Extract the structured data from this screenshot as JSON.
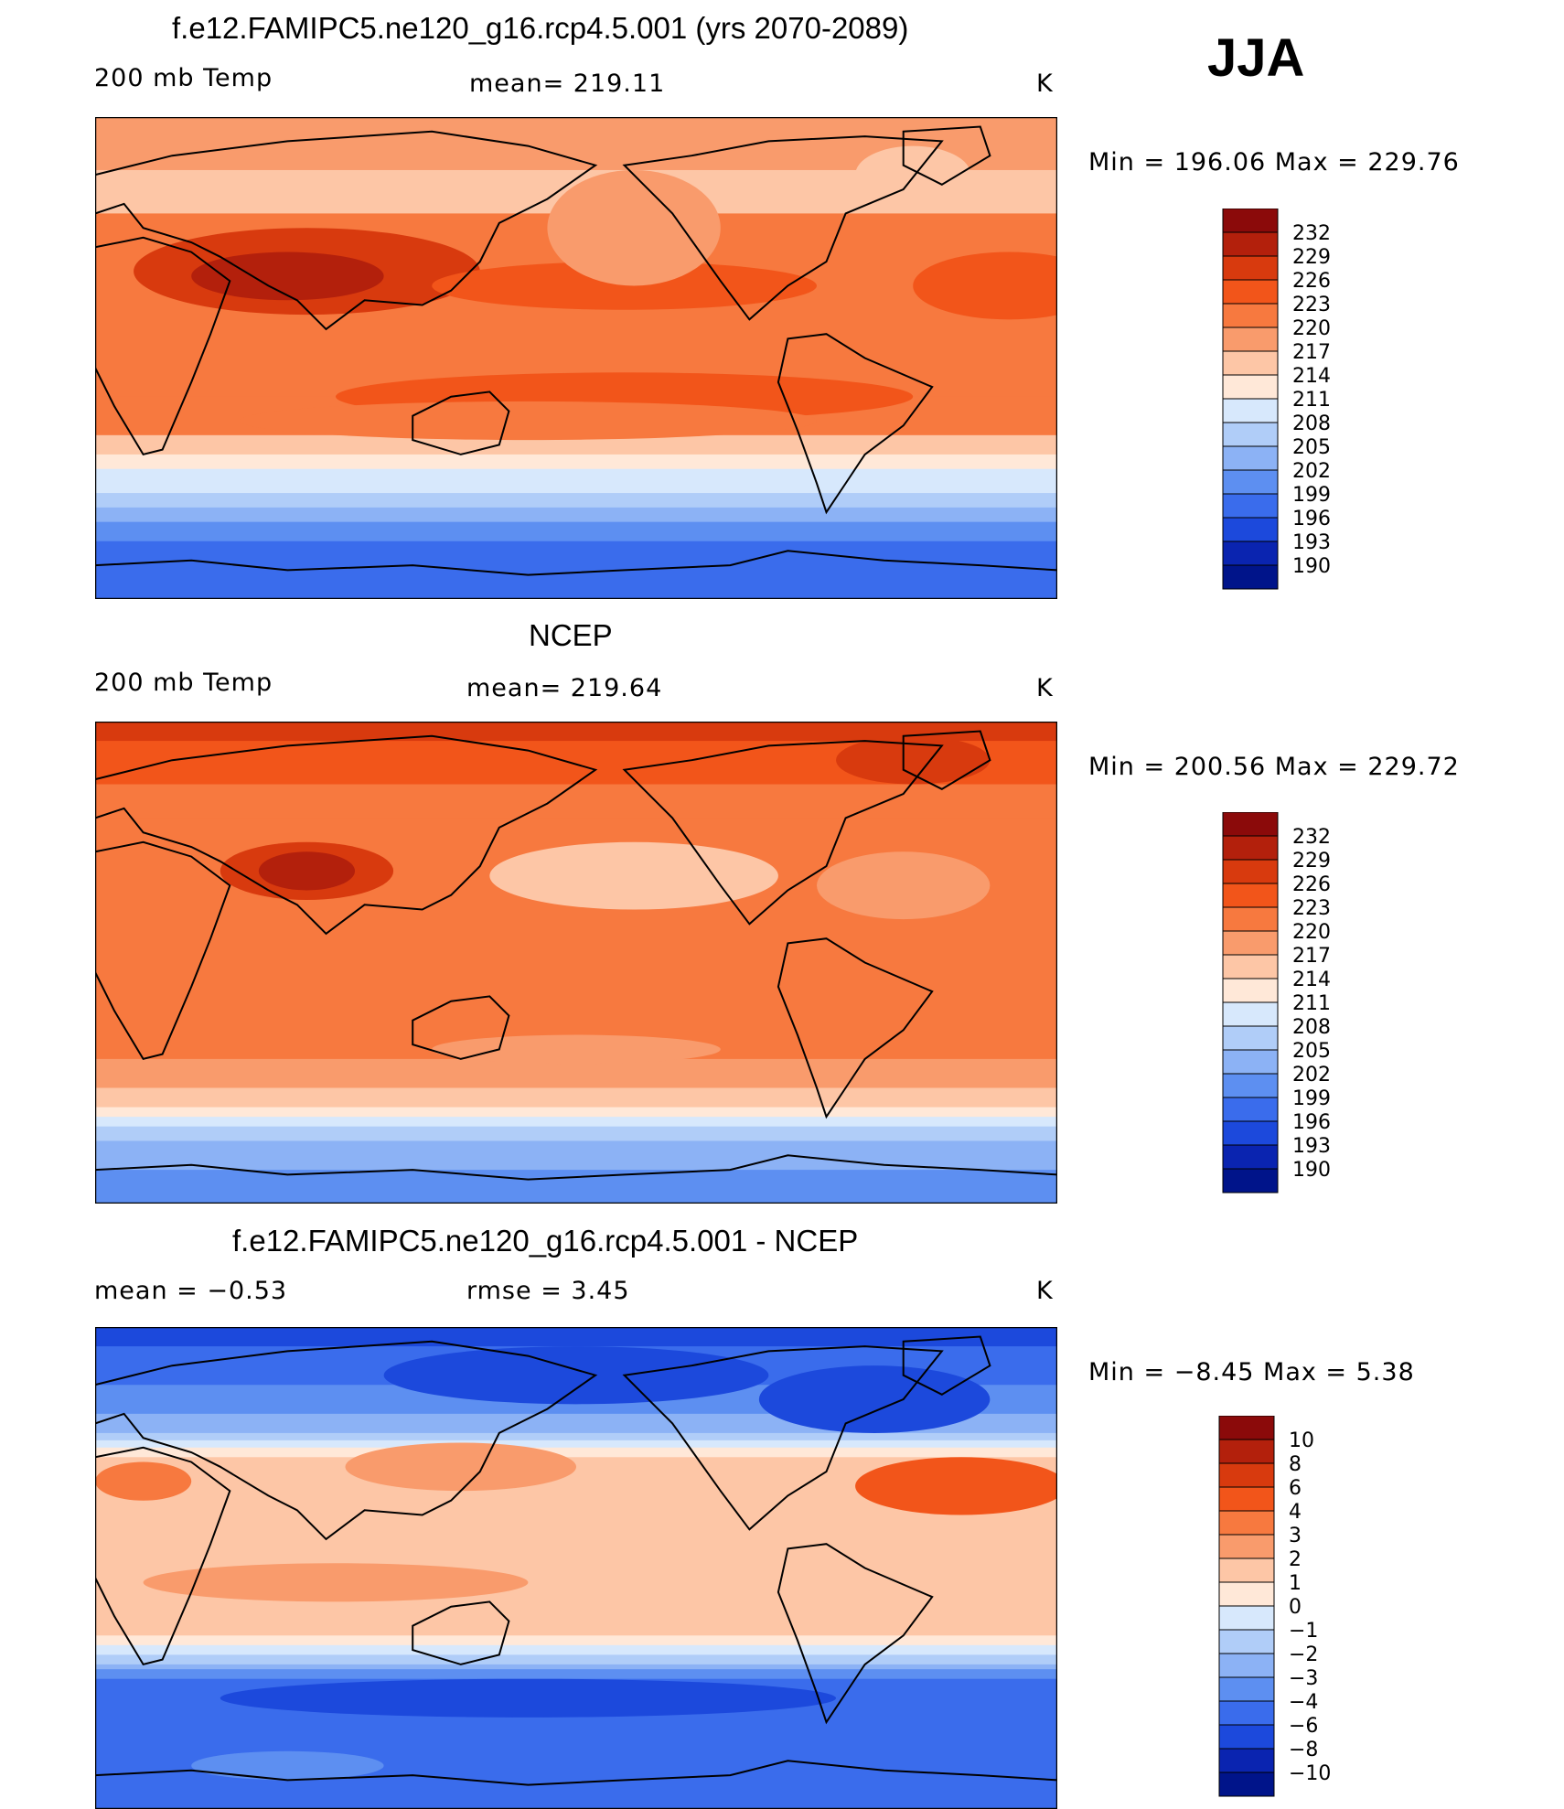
{
  "season": "JJA",
  "units": "K",
  "continents_icon": "world-coastline-icon",
  "panels": [
    {
      "title": "f.e12.FAMIPC5.ne120_g16.rcp4.5.001 (yrs 2070-2089)",
      "left_label": "200 mb Temp",
      "center_label": "mean= 219.11",
      "right_label": "K",
      "minmax": "Min  =  196.06  Max  =  229.76",
      "field": "model",
      "legend_labels": [
        "232",
        "229",
        "226",
        "223",
        "220",
        "217",
        "214",
        "211",
        "208",
        "205",
        "202",
        "199",
        "196",
        "193",
        "190"
      ]
    },
    {
      "title": "NCEP",
      "left_label": "200 mb Temp",
      "center_label": "mean= 219.64",
      "right_label": "K",
      "minmax": "Min  =  200.56  Max  =  229.72",
      "field": "obs",
      "legend_labels": [
        "232",
        "229",
        "226",
        "223",
        "220",
        "217",
        "214",
        "211",
        "208",
        "205",
        "202",
        "199",
        "196",
        "193",
        "190"
      ]
    },
    {
      "title": "f.e12.FAMIPC5.ne120_g16.rcp4.5.001 - NCEP",
      "left_label": "mean  =    −0.53",
      "center_label": "rmse  =     3.45",
      "right_label": "K",
      "minmax": "Min  =    −8.45  Max  =     5.38",
      "field": "diff",
      "legend_labels": [
        "10",
        "8",
        "6",
        "4",
        "3",
        "2",
        "1",
        "0",
        "−1",
        "−2",
        "−3",
        "−4",
        "−6",
        "−8",
        "−10"
      ]
    }
  ],
  "colors": {
    "scale": [
      "#8b0a0a",
      "#b3200c",
      "#d83a0e",
      "#f2551a",
      "#f7793f",
      "#f99b6c",
      "#fdc6a6",
      "#ffe8d8",
      "#d7e8fc",
      "#b0cdf8",
      "#8cb2f5",
      "#5d8ff1",
      "#3a6cec",
      "#1c49dc",
      "#0a24b0",
      "#00148a"
    ],
    "coast": "#000000"
  }
}
